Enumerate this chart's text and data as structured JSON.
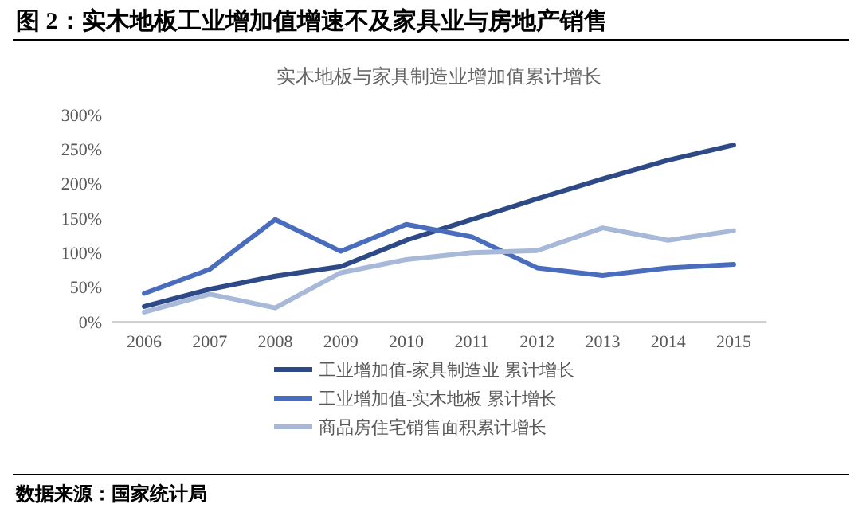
{
  "chart_data": {
    "type": "line",
    "title": "图 2：实木地板工业增加值增速不及家具业与房地产销售",
    "subtitle": "实木地板与家具制造业增加值累计增长",
    "categories": [
      "2006",
      "2007",
      "2008",
      "2009",
      "2010",
      "2011",
      "2012",
      "2013",
      "2014",
      "2015"
    ],
    "series": [
      {
        "name": "工业增加值-家具制造业 累计增长",
        "color": "#2e4a86",
        "values": [
          22,
          47,
          66,
          80,
          118,
          148,
          178,
          207,
          234,
          256
        ]
      },
      {
        "name": "工业增加值-实木地板 累计增长",
        "color": "#4a6cbc",
        "values": [
          41,
          76,
          148,
          102,
          141,
          123,
          78,
          67,
          78,
          83
        ]
      },
      {
        "name": "商品房住宅销售面积累计增长",
        "color": "#a8b8d8",
        "values": [
          14,
          40,
          20,
          71,
          90,
          100,
          103,
          136,
          118,
          132
        ]
      }
    ],
    "ylim": [
      0,
      300
    ],
    "yticks": [
      {
        "value": 0,
        "label": "0%"
      },
      {
        "value": 50,
        "label": "50%"
      },
      {
        "value": 100,
        "label": "100%"
      },
      {
        "value": 150,
        "label": "150%"
      },
      {
        "value": 200,
        "label": "200%"
      },
      {
        "value": 250,
        "label": "250%"
      },
      {
        "value": 300,
        "label": "300%"
      }
    ],
    "grid": false,
    "legend": "bottom",
    "marker": "none",
    "line_style": "solid",
    "annotations": [
      "数据来源：国家统计局"
    ]
  }
}
